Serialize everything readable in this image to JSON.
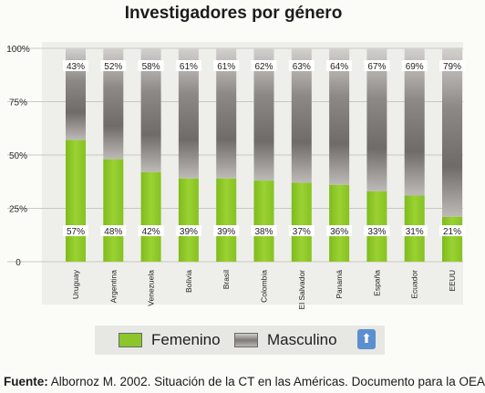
{
  "chart_data": {
    "type": "bar",
    "stacked": true,
    "title": "Investigadores por género",
    "categories": [
      "Uruguay",
      "Argentina",
      "Venezuela",
      "Bolivia",
      "Brasil",
      "Colombia",
      "El Salvador",
      "Panamá",
      "España",
      "Ecuador",
      "EEUU"
    ],
    "series": [
      {
        "name": "Femenino",
        "values": [
          57,
          48,
          42,
          39,
          39,
          38,
          37,
          36,
          33,
          31,
          21
        ],
        "labels": [
          "57%",
          "48%",
          "42%",
          "39%",
          "39%",
          "38%",
          "37%",
          "36%",
          "33%",
          "31%",
          "21%"
        ],
        "color": "#8cc62a"
      },
      {
        "name": "Masculino",
        "values": [
          43,
          52,
          58,
          61,
          61,
          62,
          63,
          64,
          67,
          69,
          79
        ],
        "labels": [
          "43%",
          "52%",
          "58%",
          "61%",
          "61%",
          "62%",
          "63%",
          "64%",
          "67%",
          "69%",
          "79%"
        ],
        "color": "#878380"
      }
    ],
    "yticks": [
      "0",
      "25%",
      "50%",
      "75%",
      "100%"
    ],
    "ylim": [
      0,
      100
    ],
    "grid": true,
    "legend_position": "bottom"
  },
  "legend": {
    "items": [
      {
        "label": "Femenino",
        "color": "#8cc62a"
      },
      {
        "label": "Masculino",
        "color": "#878380"
      }
    ],
    "arrow_icon": "up-arrow-icon"
  },
  "source": {
    "label": "Fuente:",
    "text": "Albornoz M. 2002. Situación de la CT en las Américas. Documento para la OEA"
  }
}
